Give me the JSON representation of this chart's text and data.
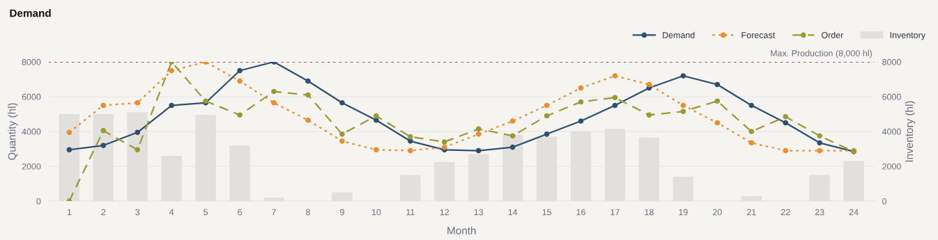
{
  "chart_data": {
    "type": "line",
    "title": "Demand",
    "xlabel": "Month",
    "ylabel": "Quantity (hl)",
    "y2label": "Inventory (hl)",
    "categories": [
      "1",
      "2",
      "3",
      "4",
      "5",
      "6",
      "7",
      "8",
      "9",
      "10",
      "11",
      "12",
      "13",
      "14",
      "15",
      "16",
      "17",
      "18",
      "19",
      "20",
      "21",
      "22",
      "23",
      "24"
    ],
    "series": [
      {
        "name": "Demand",
        "color": "#2e5070",
        "marker": "circle",
        "line_style": "solid",
        "values": [
          2950,
          3200,
          3950,
          5500,
          5650,
          7500,
          8000,
          6900,
          5650,
          4650,
          3450,
          2950,
          2900,
          3100,
          3850,
          4600,
          5500,
          6500,
          7200,
          6700,
          5500,
          4500,
          3350,
          2850
        ]
      },
      {
        "name": "Forecast",
        "color": "#ef8c2e",
        "marker": "circle",
        "line_style": "dotted",
        "values": [
          3950,
          5500,
          5650,
          7500,
          8000,
          6900,
          5650,
          4650,
          3450,
          2950,
          2900,
          3100,
          3850,
          4600,
          5500,
          6500,
          7200,
          6700,
          5500,
          4500,
          3350,
          2900,
          2900,
          2900
        ]
      },
      {
        "name": "Order",
        "color": "#9a9a32",
        "marker": "circle",
        "line_style": "dashed",
        "values": [
          0,
          4050,
          2950,
          8000,
          5750,
          4950,
          6300,
          6100,
          3850,
          4900,
          3700,
          3400,
          4150,
          3750,
          4900,
          5700,
          5950,
          4950,
          5150,
          5750,
          4000,
          4850,
          3750,
          2850
        ]
      },
      {
        "name": "Inventory",
        "type": "bar",
        "axis": "y2",
        "color": "#e2e0dd",
        "values": [
          5000,
          5000,
          5100,
          2600,
          4950,
          3200,
          200,
          0,
          500,
          0,
          1500,
          2250,
          2700,
          3800,
          3700,
          4000,
          4150,
          3650,
          1400,
          0,
          280,
          0,
          1500,
          2300
        ]
      }
    ],
    "ylim": [
      0,
      8000
    ],
    "yticks": [
      0,
      2000,
      4000,
      6000,
      8000
    ],
    "y2lim": [
      0,
      8000
    ],
    "y2ticks": [
      0,
      2000,
      4000,
      6000,
      8000
    ],
    "ref_lines": [
      {
        "axis": "y",
        "value": 8000,
        "label": "Max. Production (8,000 hl)",
        "color": "#a8485a",
        "line_style": "dotted"
      }
    ],
    "grid": "y",
    "legend": "top right"
  }
}
